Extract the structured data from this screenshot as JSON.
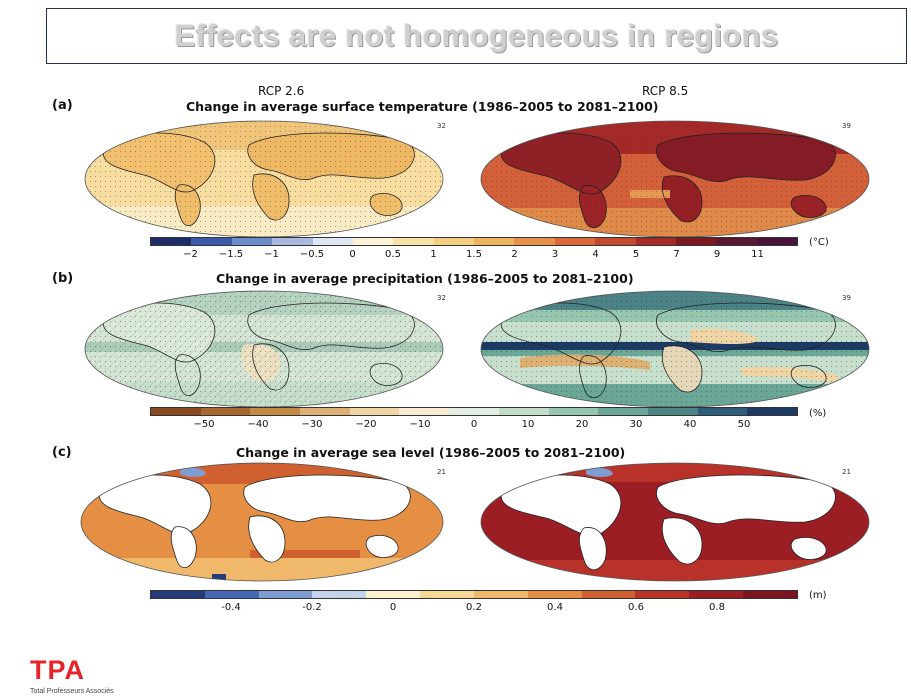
{
  "slide": {
    "title": "Effects are not homogeneous in regions"
  },
  "figure": {
    "scenario_left": "RCP 2.6",
    "scenario_right": "RCP 8.5",
    "panels": [
      {
        "label": "(a)",
        "title": "Change in average surface temperature (1986–2005 to 2081–2100)",
        "count_left": "32",
        "count_right": "39",
        "unit": "(°C)",
        "ticks": [
          "−2",
          "−1.5",
          "−1",
          "−0.5",
          "0",
          "0.5",
          "1",
          "1.5",
          "2",
          "3",
          "4",
          "5",
          "7",
          "9",
          "11"
        ],
        "colors": [
          "#1d2d6b",
          "#3a59a8",
          "#6d8ccb",
          "#a7bbe0",
          "#dfe7f3",
          "#fbf3d6",
          "#f8e2a8",
          "#f5cf80",
          "#f0b45f",
          "#e8914a",
          "#d9683a",
          "#c44a2f",
          "#a32a27",
          "#7c1a22",
          "#5a1830",
          "#4a1238"
        ]
      },
      {
        "label": "(b)",
        "title": "Change in average precipitation (1986–2005 to 2081–2100)",
        "count_left": "32",
        "count_right": "39",
        "unit": "(%)",
        "ticks": [
          "−50",
          "−40",
          "−30",
          "−20",
          "−10",
          "0",
          "10",
          "20",
          "30",
          "40",
          "50"
        ],
        "colors": [
          "#8a4b1e",
          "#a8672e",
          "#c58947",
          "#ddb073",
          "#efd4a4",
          "#f7ecd3",
          "#e4efe4",
          "#c2ddc9",
          "#97c6b0",
          "#6aa796",
          "#4b8387",
          "#2d5d78",
          "#1c3a64"
        ]
      },
      {
        "label": "(c)",
        "title": "Change in average sea level (1986–2005 to 2081–2100)",
        "count_left": "21",
        "count_right": "21",
        "unit": "(m)",
        "ticks": [
          "-0.4",
          "-0.2",
          "0",
          "0.2",
          "0.4",
          "0.6",
          "0.8"
        ],
        "colors": [
          "#243a7a",
          "#4467b3",
          "#7f9cd3",
          "#c4d2ec",
          "#fbf2cf",
          "#f6d896",
          "#efb86a",
          "#e58f45",
          "#d0602f",
          "#b8322a",
          "#9b1e25",
          "#7d1420"
        ]
      }
    ]
  },
  "logo": {
    "name": "TPA",
    "tagline": "Total Professeurs Associés"
  }
}
